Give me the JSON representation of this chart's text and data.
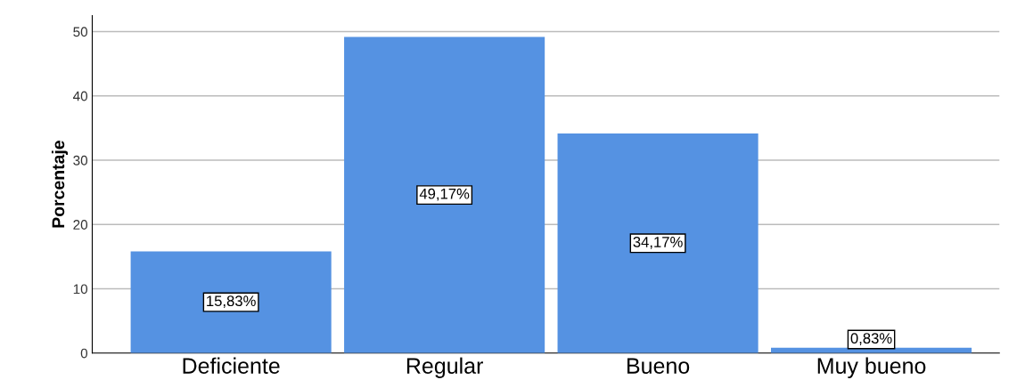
{
  "chart_data": {
    "type": "bar",
    "ylabel": "Porcentaje",
    "categories": [
      "Deficiente",
      "Regular",
      "Bueno",
      "Muy bueno"
    ],
    "values": [
      15.83,
      49.17,
      34.17,
      0.83
    ],
    "value_labels": [
      "15,83%",
      "49,17%",
      "34,17%",
      "0,83%"
    ],
    "color": "#5592e2",
    "ylim": [
      0,
      52.5
    ],
    "yticks": [
      0,
      10,
      20,
      30,
      40,
      50
    ],
    "grid": "y"
  }
}
